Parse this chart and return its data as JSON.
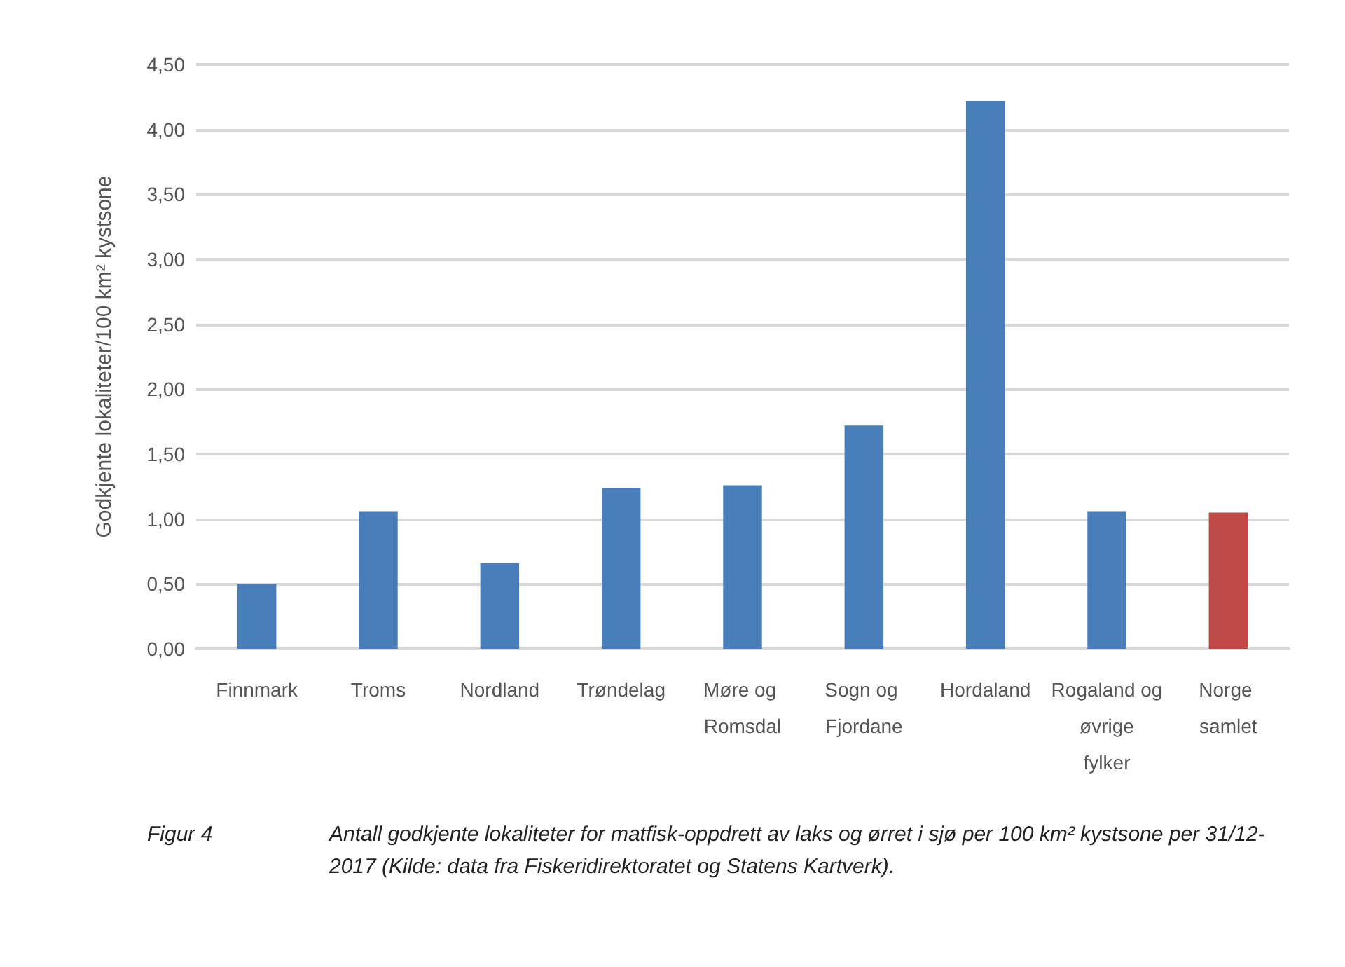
{
  "chart_data": {
    "type": "bar",
    "ylabel": "Godkjente lokaliteter/100 km² kystsone",
    "categories": [
      "Finnmark",
      "Troms",
      "Nordland",
      "Trøndelag",
      "Møre og Romsdal",
      "Sogn og Fjordane",
      "Hordaland",
      "Rogaland og øvrige fylker",
      "Norge samlet"
    ],
    "values": [
      0.5,
      1.06,
      0.66,
      1.24,
      1.26,
      1.72,
      4.22,
      1.06,
      1.05
    ],
    "colors": [
      "#4a7ebb",
      "#4a7ebb",
      "#4a7ebb",
      "#4a7ebb",
      "#4a7ebb",
      "#4a7ebb",
      "#4a7ebb",
      "#4a7ebb",
      "#be4b48"
    ],
    "ylim": [
      0,
      4.5
    ],
    "yticks": [
      {
        "value": 0,
        "label": "0,00"
      },
      {
        "value": 0.5,
        "label": "0,50"
      },
      {
        "value": 1,
        "label": "1,00"
      },
      {
        "value": 1.5,
        "label": "1,50"
      },
      {
        "value": 2,
        "label": "2,00"
      },
      {
        "value": 2.5,
        "label": "2,50"
      },
      {
        "value": 3,
        "label": "3,00"
      },
      {
        "value": 3.5,
        "label": "3,50"
      },
      {
        "value": 4,
        "label": "4,00"
      },
      {
        "value": 4.5,
        "label": "4,50"
      }
    ],
    "grid": "y",
    "annotations": [
      "Figur 4",
      "Antall godkjente lokaliteter for matfisk-oppdrett av laks og ørret i sjø per 100 km² kystsone per 31/12-2017 (Kilde: data fra Fiskeridirektoratet og Statens Kartverk)."
    ]
  }
}
